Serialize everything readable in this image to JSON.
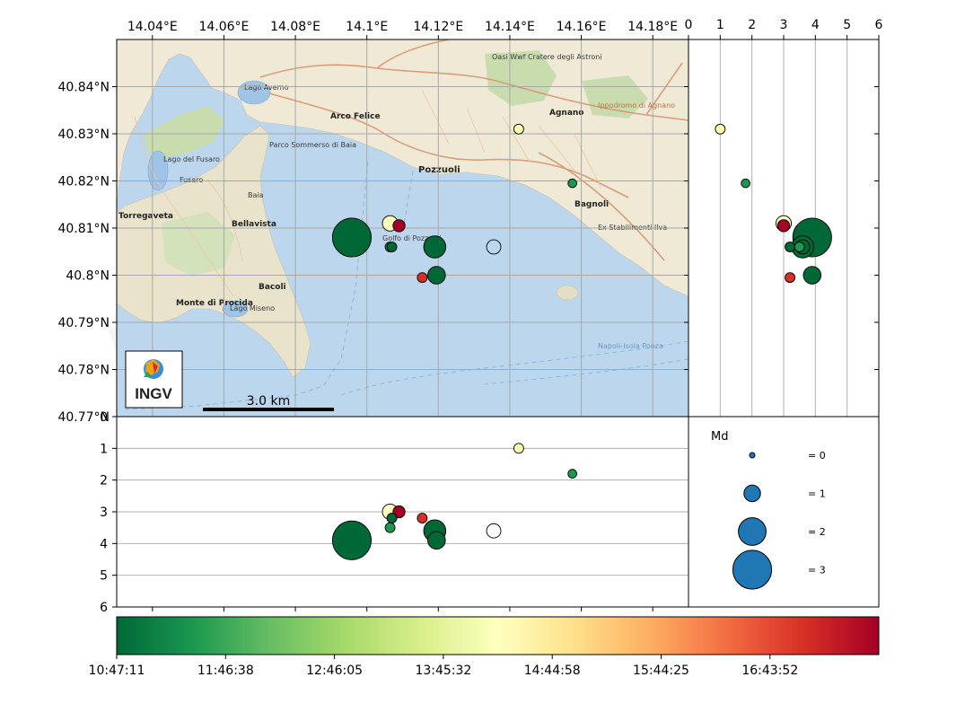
{
  "chart_data": {
    "type": "scatter",
    "title": "",
    "map": {
      "lon_range": [
        14.03,
        14.19
      ],
      "lat_range": [
        40.77,
        40.85
      ],
      "lon_ticks": [
        "14.04°E",
        "14.06°E",
        "14.08°E",
        "14.1°E",
        "14.12°E",
        "14.14°E",
        "14.16°E",
        "14.18°E"
      ],
      "lon_tick_values": [
        14.04,
        14.06,
        14.08,
        14.1,
        14.12,
        14.14,
        14.16,
        14.18
      ],
      "lat_ticks": [
        "40.84°N",
        "40.83°N",
        "40.82°N",
        "40.81°N",
        "40.8°N",
        "40.79°N",
        "40.78°N",
        "40.77°N"
      ],
      "lat_tick_values": [
        40.84,
        40.83,
        40.82,
        40.81,
        40.8,
        40.79,
        40.78,
        40.77
      ],
      "scale_bar_label": "3.0 km",
      "logo_text": "INGV",
      "place_labels": [
        "Lago Averno",
        "Arco Felice",
        "Pozzuoli",
        "Agnano",
        "Bagnoli",
        "Bellavista",
        "Baia",
        "Bacoli",
        "Fusaro",
        "Torregaveta",
        "Lago del Fusaro",
        "Monte di Procida",
        "Lago Miseno",
        "Golfo di Pozzuoli",
        "Oasi Wwf Cratere degli Astroni",
        "Ippodromo di Agnano",
        "Parco Sommerso di Baia",
        "Ex Stabilimenti Ilva",
        "Napoli-Isola Ponza"
      ]
    },
    "depth_axis": {
      "label": "",
      "range": [
        0,
        6
      ],
      "ticks": [
        "0",
        "1",
        "2",
        "3",
        "4",
        "5",
        "6"
      ],
      "values": [
        0,
        1,
        2,
        3,
        4,
        5,
        6
      ]
    },
    "colorbar": {
      "labels": [
        "10:47:11",
        "11:46:38",
        "12:46:05",
        "13:45:32",
        "14:44:58",
        "15:44:25",
        "16:43:52"
      ],
      "colormap": "RdYlGn reversed",
      "stops": [
        "#006837",
        "#1a9850",
        "#66bd63",
        "#a6d96a",
        "#d9ef8b",
        "#ffffbf",
        "#fee08b",
        "#fdae61",
        "#f46d43",
        "#d73027",
        "#a50026"
      ],
      "time_range_fraction": [
        0,
        1
      ]
    },
    "legend": {
      "title": "Md",
      "entries": [
        "= 0",
        "= 1",
        "= 2",
        "= 3"
      ],
      "magnitudes": [
        0,
        1,
        2,
        3
      ],
      "color": "#1f77b4"
    },
    "events": [
      {
        "lon": 14.0958,
        "lat": 40.808,
        "depth": 3.9,
        "md": 3.0,
        "color": "#006837"
      },
      {
        "lon": 14.119,
        "lat": 40.806,
        "depth": 3.6,
        "md": 1.5,
        "color": "#006837"
      },
      {
        "lon": 14.1195,
        "lat": 40.8,
        "depth": 3.9,
        "md": 1.1,
        "color": "#006837"
      },
      {
        "lon": 14.1065,
        "lat": 40.811,
        "depth": 3.0,
        "md": 0.9,
        "color": "#ffffbf"
      },
      {
        "lon": 14.109,
        "lat": 40.8105,
        "depth": 3.0,
        "md": 0.6,
        "color": "#a50026"
      },
      {
        "lon": 14.1065,
        "lat": 40.806,
        "depth": 3.5,
        "md": 0.4,
        "color": "#1a9850"
      },
      {
        "lon": 14.107,
        "lat": 40.806,
        "depth": 3.2,
        "md": 0.4,
        "color": "#006837"
      },
      {
        "lon": 14.1155,
        "lat": 40.7995,
        "depth": 3.2,
        "md": 0.4,
        "color": "#d73027"
      },
      {
        "lon": 14.1425,
        "lat": 40.831,
        "depth": 1.0,
        "md": 0.4,
        "color": "#fefeb0"
      },
      {
        "lon": 14.1575,
        "lat": 40.8195,
        "depth": 1.8,
        "md": 0.3,
        "color": "#1a9850"
      },
      {
        "lon": 14.1355,
        "lat": 40.806,
        "depth": 3.6,
        "md": 0.8,
        "color": "none"
      }
    ]
  }
}
